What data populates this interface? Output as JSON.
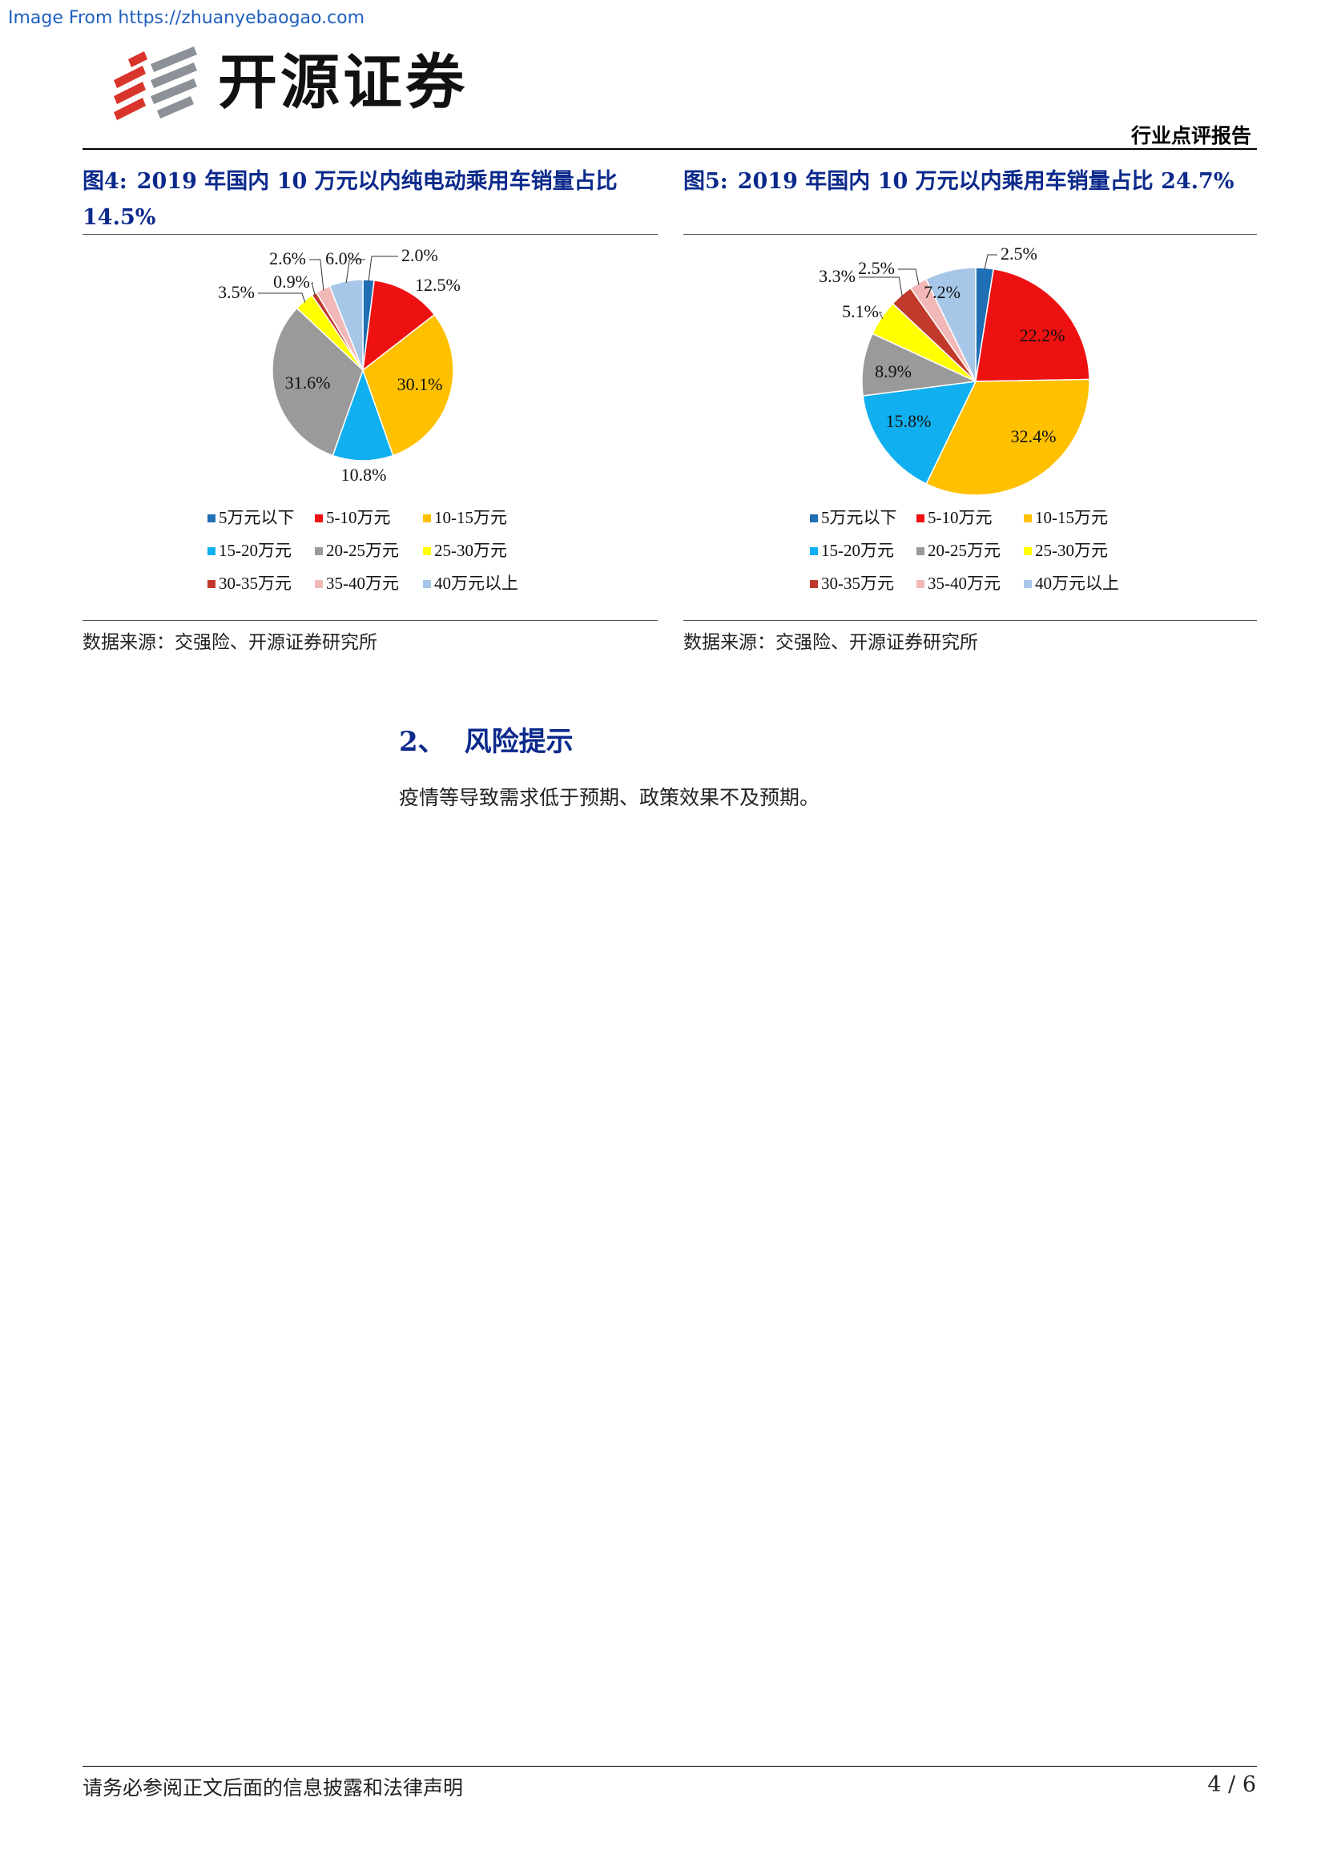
{
  "watermark": "Image From https://zhuanyebaogao.com",
  "brand": {
    "name": "开源证券",
    "colors": {
      "red": "#d9342b",
      "gray": "#8c9198"
    }
  },
  "header": {
    "report_type": "行业点评报告"
  },
  "figures": [
    {
      "label": "图4:",
      "title": "2019 年国内 10 万元以内纯电动乘用车销量占比 14.5%",
      "source": "数据来源：交强险、开源证券研究所"
    },
    {
      "label": "图5:",
      "title": "2019 年国内 10 万元以内乘用车销量占比 24.7%",
      "source": "数据来源：交强险、开源证券研究所"
    }
  ],
  "chart_data": [
    {
      "type": "pie",
      "categories": [
        "5万元以下",
        "5-10万元",
        "10-15万元",
        "15-20万元",
        "20-25万元",
        "25-30万元",
        "30-35万元",
        "35-40万元",
        "40万元以上"
      ],
      "values": [
        2.0,
        12.5,
        30.1,
        10.8,
        31.6,
        3.5,
        0.9,
        2.6,
        6.0
      ],
      "labels": [
        "2.0%",
        "12.5%",
        "30.1%",
        "10.8%",
        "31.6%",
        "3.5%",
        "0.9%",
        "2.6%",
        "6.0%"
      ],
      "colors": [
        "#1f6fb4",
        "#ee1111",
        "#ffc000",
        "#10b0f0",
        "#9a9a9a",
        "#ffff00",
        "#c0392b",
        "#f2b8b8",
        "#a7c7e8"
      ],
      "legend_position": "bottom"
    },
    {
      "type": "pie",
      "categories": [
        "5万元以下",
        "5-10万元",
        "10-15万元",
        "15-20万元",
        "20-25万元",
        "25-30万元",
        "30-35万元",
        "35-40万元",
        "40万元以上"
      ],
      "values": [
        2.5,
        22.2,
        32.4,
        15.8,
        8.9,
        5.1,
        3.3,
        2.5,
        7.2
      ],
      "labels": [
        "2.5%",
        "22.2%",
        "32.4%",
        "15.8%",
        "8.9%",
        "5.1%",
        "3.3%",
        "2.5%",
        "7.2%"
      ],
      "colors": [
        "#1f6fb4",
        "#ee1111",
        "#ffc000",
        "#10b0f0",
        "#9a9a9a",
        "#ffff00",
        "#c0392b",
        "#f2b8b8",
        "#a7c7e8"
      ],
      "legend_position": "bottom"
    }
  ],
  "section": {
    "number": "2、",
    "title": "风险提示",
    "body": "疫情等导致需求低于预期、政策效果不及预期。"
  },
  "footer": {
    "disclaimer": "请务必参阅正文后面的信息披露和法律声明",
    "page": "4 / 6"
  }
}
